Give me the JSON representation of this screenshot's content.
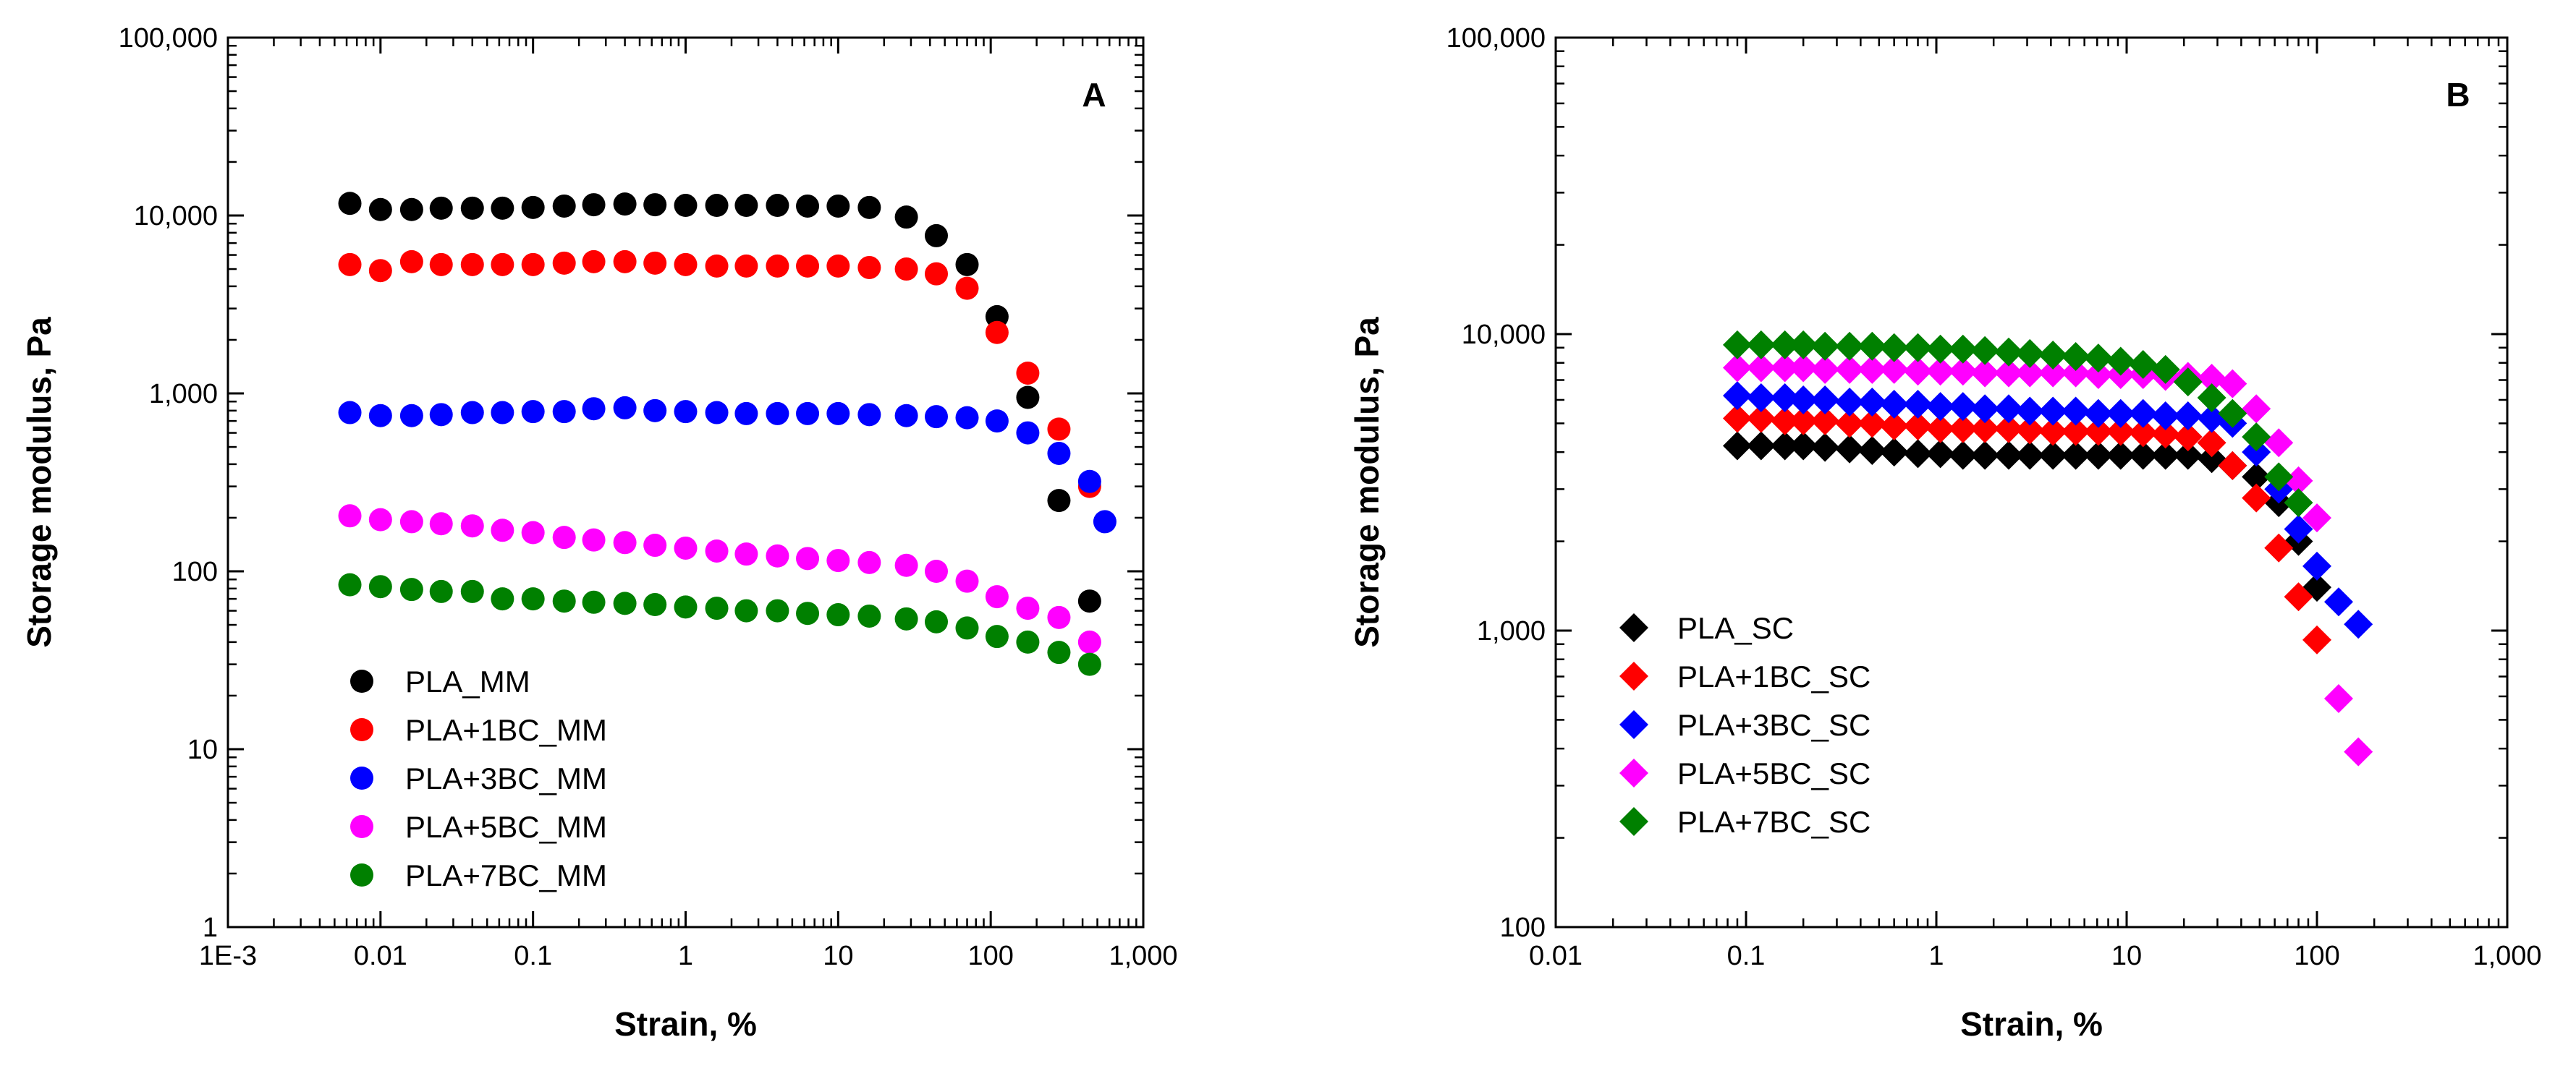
{
  "chart_data": [
    {
      "type": "scatter",
      "panel_label": "A",
      "xlabel": "Strain, %",
      "ylabel": "Storage modulus, Pa",
      "xscale": "log",
      "yscale": "log",
      "xlim": [
        0.001,
        1000
      ],
      "ylim": [
        1,
        100000
      ],
      "xticks": [
        {
          "v": 0.001,
          "label": "1E-3"
        },
        {
          "v": 0.01,
          "label": "0.01"
        },
        {
          "v": 0.1,
          "label": "0.1"
        },
        {
          "v": 1,
          "label": "1"
        },
        {
          "v": 10,
          "label": "10"
        },
        {
          "v": 100,
          "label": "100"
        },
        {
          "v": 1000,
          "label": "1,000"
        }
      ],
      "yticks": [
        {
          "v": 1,
          "label": "1"
        },
        {
          "v": 10,
          "label": "10"
        },
        {
          "v": 100,
          "label": "100"
        },
        {
          "v": 1000,
          "label": "1,000"
        },
        {
          "v": 10000,
          "label": "10,000"
        },
        {
          "v": 100000,
          "label": "100,000"
        }
      ],
      "marker": "circle",
      "legend_position": "bottom-left",
      "series": [
        {
          "name": "PLA_MM",
          "color": "#000000",
          "x": [
            0.0063,
            0.01,
            0.016,
            0.025,
            0.04,
            0.063,
            0.1,
            0.16,
            0.25,
            0.4,
            0.63,
            1,
            1.6,
            2.5,
            4,
            6.3,
            10,
            16,
            28,
            44,
            70,
            110,
            175,
            280,
            445
          ],
          "y": [
            11700,
            10800,
            10800,
            11000,
            11000,
            11000,
            11100,
            11300,
            11500,
            11600,
            11500,
            11400,
            11400,
            11400,
            11400,
            11300,
            11300,
            11100,
            9800,
            7700,
            5300,
            2700,
            950,
            250,
            68
          ]
        },
        {
          "name": "PLA+1BC_MM",
          "color": "#ff0000",
          "x": [
            0.0063,
            0.01,
            0.016,
            0.025,
            0.04,
            0.063,
            0.1,
            0.16,
            0.25,
            0.4,
            0.63,
            1,
            1.6,
            2.5,
            4,
            6.3,
            10,
            16,
            28,
            44,
            70,
            110,
            175,
            280,
            445
          ],
          "y": [
            5300,
            4900,
            5500,
            5300,
            5300,
            5300,
            5300,
            5400,
            5500,
            5500,
            5400,
            5300,
            5200,
            5200,
            5200,
            5200,
            5200,
            5100,
            5000,
            4700,
            3900,
            2200,
            1300,
            630,
            300
          ]
        },
        {
          "name": "PLA+3BC_MM",
          "color": "#0000ff",
          "x": [
            0.0063,
            0.01,
            0.016,
            0.025,
            0.04,
            0.063,
            0.1,
            0.16,
            0.25,
            0.4,
            0.63,
            1,
            1.6,
            2.5,
            4,
            6.3,
            10,
            16,
            28,
            44,
            70,
            110,
            175,
            280,
            445,
            560
          ],
          "y": [
            780,
            750,
            750,
            760,
            780,
            780,
            790,
            790,
            820,
            830,
            800,
            790,
            780,
            770,
            770,
            770,
            770,
            760,
            750,
            740,
            730,
            700,
            600,
            460,
            320,
            190
          ]
        },
        {
          "name": "PLA+5BC_MM",
          "color": "#ff00ff",
          "x": [
            0.0063,
            0.01,
            0.016,
            0.025,
            0.04,
            0.063,
            0.1,
            0.16,
            0.25,
            0.4,
            0.63,
            1,
            1.6,
            2.5,
            4,
            6.3,
            10,
            16,
            28,
            44,
            70,
            110,
            175,
            280,
            445
          ],
          "y": [
            205,
            195,
            190,
            185,
            180,
            170,
            165,
            155,
            150,
            145,
            140,
            135,
            130,
            125,
            122,
            118,
            115,
            112,
            108,
            100,
            88,
            72,
            62,
            55,
            40
          ]
        },
        {
          "name": "PLA+7BC_MM",
          "color": "#008000",
          "x": [
            0.0063,
            0.01,
            0.016,
            0.025,
            0.04,
            0.063,
            0.1,
            0.16,
            0.25,
            0.4,
            0.63,
            1,
            1.6,
            2.5,
            4,
            6.3,
            10,
            16,
            28,
            44,
            70,
            110,
            175,
            280,
            445
          ],
          "y": [
            84,
            82,
            79,
            77,
            77,
            70,
            70,
            68,
            67,
            66,
            65,
            63,
            62,
            60,
            60,
            58,
            57,
            56,
            54,
            52,
            48,
            43,
            40,
            35,
            30
          ]
        }
      ]
    },
    {
      "type": "scatter",
      "panel_label": "B",
      "xlabel": "Strain, %",
      "ylabel": "Storage modulus, Pa",
      "xscale": "log",
      "yscale": "log",
      "xlim": [
        0.01,
        1000
      ],
      "ylim": [
        100,
        100000
      ],
      "xticks": [
        {
          "v": 0.01,
          "label": "0.01"
        },
        {
          "v": 0.1,
          "label": "0.1"
        },
        {
          "v": 1,
          "label": "1"
        },
        {
          "v": 10,
          "label": "10"
        },
        {
          "v": 100,
          "label": "100"
        },
        {
          "v": 1000,
          "label": "1,000"
        }
      ],
      "yticks": [
        {
          "v": 100,
          "label": "100"
        },
        {
          "v": 1000,
          "label": "1,000"
        },
        {
          "v": 10000,
          "label": "10,000"
        },
        {
          "v": 100000,
          "label": "100,000"
        }
      ],
      "marker": "diamond",
      "legend_position": "bottom-left",
      "series": [
        {
          "name": "PLA_SC",
          "color": "#000000",
          "x": [
            0.09,
            0.12,
            0.16,
            0.2,
            0.26,
            0.35,
            0.46,
            0.6,
            0.8,
            1.05,
            1.38,
            1.8,
            2.4,
            3.1,
            4.1,
            5.4,
            7.1,
            9.3,
            12.2,
            16,
            21,
            28,
            36,
            48,
            63,
            80,
            100
          ],
          "y": [
            4200,
            4200,
            4200,
            4200,
            4150,
            4100,
            4050,
            4000,
            3950,
            3950,
            3900,
            3900,
            3900,
            3900,
            3900,
            3900,
            3900,
            3900,
            3900,
            3900,
            3900,
            3800,
            3600,
            3300,
            2700,
            2000,
            1400
          ]
        },
        {
          "name": "PLA+1BC_SC",
          "color": "#ff0000",
          "x": [
            0.09,
            0.12,
            0.16,
            0.2,
            0.26,
            0.35,
            0.46,
            0.6,
            0.8,
            1.05,
            1.38,
            1.8,
            2.4,
            3.1,
            4.1,
            5.4,
            7.1,
            9.3,
            12.2,
            16,
            21,
            28,
            36,
            48,
            63,
            80,
            100
          ],
          "y": [
            5200,
            5200,
            5100,
            5100,
            5100,
            5000,
            5000,
            4900,
            4900,
            4800,
            4800,
            4800,
            4800,
            4750,
            4700,
            4700,
            4700,
            4700,
            4650,
            4600,
            4500,
            4300,
            3600,
            2800,
            1900,
            1300,
            930
          ]
        },
        {
          "name": "PLA+3BC_SC",
          "color": "#0000ff",
          "x": [
            0.09,
            0.12,
            0.16,
            0.2,
            0.26,
            0.35,
            0.46,
            0.6,
            0.8,
            1.05,
            1.38,
            1.8,
            2.4,
            3.1,
            4.1,
            5.4,
            7.1,
            9.3,
            12.2,
            16,
            21,
            28,
            36,
            48,
            63,
            80,
            100,
            130,
            165
          ],
          "y": [
            6200,
            6100,
            6100,
            6000,
            6000,
            5900,
            5900,
            5800,
            5800,
            5700,
            5700,
            5600,
            5600,
            5500,
            5500,
            5500,
            5400,
            5400,
            5400,
            5300,
            5300,
            5200,
            5000,
            4000,
            3000,
            2200,
            1650,
            1250,
            1050
          ]
        },
        {
          "name": "PLA+5BC_SC",
          "color": "#ff00ff",
          "x": [
            0.09,
            0.12,
            0.16,
            0.2,
            0.26,
            0.35,
            0.46,
            0.6,
            0.8,
            1.05,
            1.38,
            1.8,
            2.4,
            3.1,
            4.1,
            5.4,
            7.1,
            9.3,
            12.2,
            16,
            21,
            28,
            36,
            48,
            63,
            80,
            100,
            130,
            165
          ],
          "y": [
            7700,
            7700,
            7700,
            7700,
            7600,
            7600,
            7600,
            7600,
            7500,
            7500,
            7500,
            7400,
            7400,
            7400,
            7400,
            7400,
            7300,
            7300,
            7300,
            7200,
            7200,
            7100,
            6800,
            5600,
            4300,
            3200,
            2400,
            590,
            390
          ]
        },
        {
          "name": "PLA+7BC_SC",
          "color": "#008000",
          "x": [
            0.09,
            0.12,
            0.16,
            0.2,
            0.26,
            0.35,
            0.46,
            0.6,
            0.8,
            1.05,
            1.38,
            1.8,
            2.4,
            3.1,
            4.1,
            5.4,
            7.1,
            9.3,
            12.2,
            16,
            21,
            28,
            36,
            48,
            63,
            80
          ],
          "y": [
            9200,
            9200,
            9200,
            9200,
            9100,
            9100,
            9100,
            9000,
            9000,
            8900,
            8900,
            8800,
            8700,
            8600,
            8500,
            8400,
            8300,
            8100,
            7900,
            7600,
            6900,
            6100,
            5400,
            4500,
            3300,
            2700
          ]
        }
      ]
    }
  ]
}
